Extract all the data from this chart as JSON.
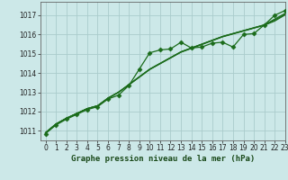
{
  "title": "Graphe pression niveau de la mer (hPa)",
  "bg_color": "#cce8e8",
  "grid_color": "#aacccc",
  "line_color": "#1a6b1a",
  "xlim": [
    -0.5,
    23
  ],
  "ylim": [
    1010.5,
    1017.7
  ],
  "yticks": [
    1011,
    1012,
    1013,
    1014,
    1015,
    1016,
    1017
  ],
  "xticks": [
    0,
    1,
    2,
    3,
    4,
    5,
    6,
    7,
    8,
    9,
    10,
    11,
    12,
    13,
    14,
    15,
    16,
    17,
    18,
    19,
    20,
    21,
    22,
    23
  ],
  "series_smooth": [
    [
      1010.9,
      1011.35,
      1011.65,
      1011.9,
      1012.15,
      1012.3,
      1012.7,
      1013.0,
      1013.4,
      1013.8,
      1014.2,
      1014.5,
      1014.8,
      1015.1,
      1015.3,
      1015.5,
      1015.7,
      1015.9,
      1016.05,
      1016.2,
      1016.35,
      1016.5,
      1016.75,
      1017.05
    ],
    [
      1010.9,
      1011.35,
      1011.65,
      1011.9,
      1012.15,
      1012.3,
      1012.7,
      1013.0,
      1013.4,
      1013.8,
      1014.2,
      1014.5,
      1014.8,
      1015.1,
      1015.3,
      1015.5,
      1015.7,
      1015.9,
      1016.05,
      1016.2,
      1016.35,
      1016.5,
      1016.8,
      1017.1
    ],
    [
      1010.9,
      1011.35,
      1011.65,
      1011.9,
      1012.15,
      1012.3,
      1012.68,
      1013.0,
      1013.38,
      1013.78,
      1014.18,
      1014.48,
      1014.78,
      1015.08,
      1015.28,
      1015.48,
      1015.68,
      1015.88,
      1016.03,
      1016.18,
      1016.33,
      1016.48,
      1016.7,
      1017.02
    ]
  ],
  "series_marker": [
    1010.85,
    1011.3,
    1011.6,
    1011.85,
    1012.1,
    1012.25,
    1012.65,
    1012.85,
    1013.35,
    1014.2,
    1015.05,
    1015.2,
    1015.25,
    1015.6,
    1015.3,
    1015.35,
    1015.55,
    1015.6,
    1015.35,
    1016.0,
    1016.05,
    1016.5,
    1017.0,
    1017.25
  ],
  "marker": "D",
  "marker_size": 2.5,
  "line_width": 0.9,
  "tick_fontsize": 5.5,
  "title_fontsize": 6.5
}
